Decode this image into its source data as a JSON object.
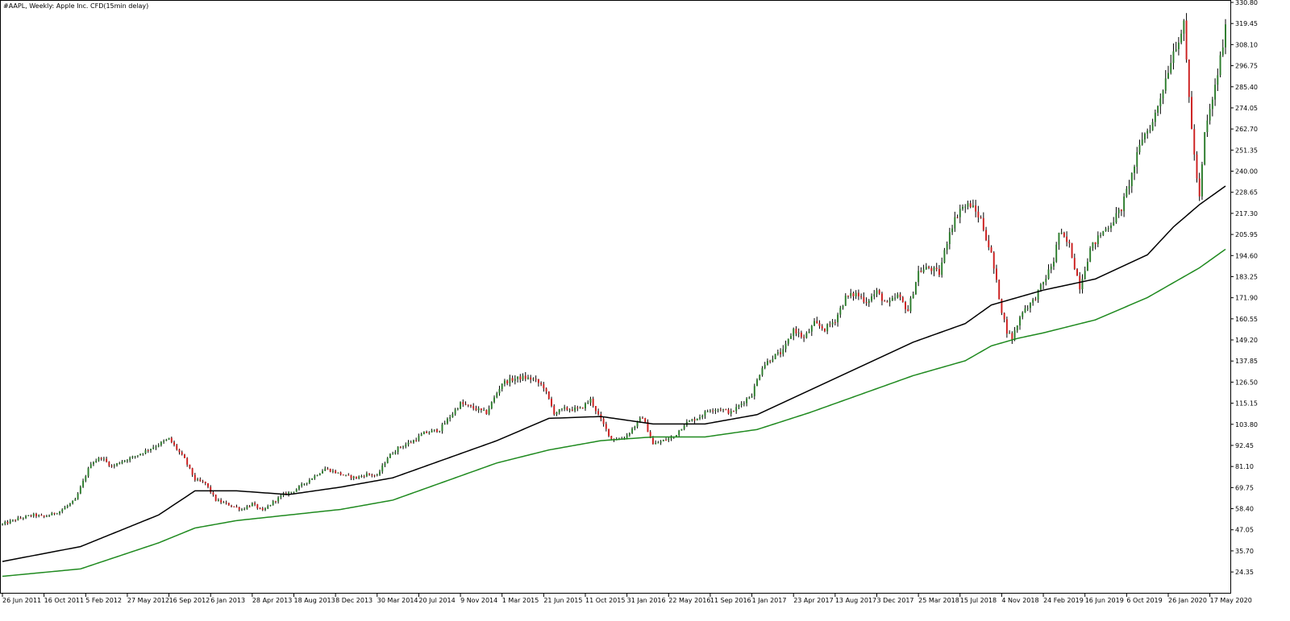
{
  "chart_data": {
    "type": "candlestick",
    "title": "#AAPL, Weekly:  Apple Inc. CFD(15min delay)",
    "colors": {
      "background": "#ffffff",
      "frame": "#000000",
      "bull_candle": "#2d7d2d",
      "bear_candle": "#cc1f1f",
      "wick": "#000000",
      "ma_fast": "#000000",
      "ma_slow": "#1f8a1f"
    },
    "y_axis": {
      "ylim": [
        14.0,
        330.8
      ],
      "tick_values": [
        24.35,
        35.7,
        47.05,
        58.4,
        69.75,
        81.1,
        92.45,
        103.8,
        115.15,
        126.5,
        137.85,
        149.2,
        160.55,
        171.9,
        183.25,
        194.6,
        205.95,
        217.3,
        228.65,
        240.0,
        251.35,
        262.7,
        274.05,
        285.4,
        296.75,
        308.1,
        319.45,
        330.8
      ],
      "tick_labels": [
        "24.35",
        "35.70",
        "47.05",
        "58.40",
        "69.75",
        "81.10",
        "92.45",
        "103.80",
        "115.15",
        "126.50",
        "137.85",
        "149.20",
        "160.55",
        "171.90",
        "183.25",
        "194.60",
        "205.95",
        "217.30",
        "228.65",
        "240.00",
        "251.35",
        "262.70",
        "274.05",
        "285.40",
        "296.75",
        "308.10",
        "319.45",
        "330.80"
      ]
    },
    "x_axis": {
      "tick_labels": [
        "26 Jun 2011",
        "16 Oct 2011",
        "5 Feb 2012",
        "27 May 2012",
        "16 Sep 2012",
        "6 Jan 2013",
        "28 Apr 2013",
        "18 Aug 2013",
        "8 Dec 2013",
        "30 Mar 2014",
        "20 Jul 2014",
        "9 Nov 2014",
        "1 Mar 2015",
        "21 Jun 2015",
        "11 Oct 2015",
        "31 Jan 2016",
        "22 May 2016",
        "11 Sep 2016",
        "1 Jan 2017",
        "23 Apr 2017",
        "13 Aug 2017",
        "3 Dec 2017",
        "25 Mar 2018",
        "15 Jul 2018",
        "4 Nov 2018",
        "24 Feb 2019",
        "16 Jun 2019",
        "6 Oct 2019",
        "26 Jan 2020",
        "17 May 2020"
      ],
      "tick_week_index": [
        0,
        16,
        32,
        48,
        64,
        80,
        96,
        112,
        128,
        144,
        160,
        176,
        192,
        208,
        224,
        240,
        256,
        272,
        288,
        304,
        320,
        336,
        352,
        368,
        384,
        400,
        416,
        432,
        448,
        464
      ],
      "total_weeks": 471
    },
    "price_keyframes": [
      [
        0,
        50.0
      ],
      [
        6,
        53.0
      ],
      [
        12,
        55.0
      ],
      [
        16,
        54.0
      ],
      [
        22,
        57.0
      ],
      [
        28,
        63.0
      ],
      [
        34,
        83.0
      ],
      [
        38,
        86.0
      ],
      [
        42,
        81.0
      ],
      [
        46,
        84.0
      ],
      [
        50,
        86.0
      ],
      [
        60,
        93.0
      ],
      [
        64,
        96.0
      ],
      [
        70,
        85.0
      ],
      [
        74,
        74.0
      ],
      [
        78,
        72.0
      ],
      [
        82,
        63.0
      ],
      [
        86,
        61.0
      ],
      [
        92,
        58.0
      ],
      [
        96,
        61.0
      ],
      [
        100,
        57.0
      ],
      [
        104,
        62.0
      ],
      [
        108,
        66.0
      ],
      [
        112,
        68.0
      ],
      [
        118,
        74.0
      ],
      [
        124,
        80.0
      ],
      [
        128,
        78.0
      ],
      [
        132,
        76.0
      ],
      [
        136,
        75.0
      ],
      [
        140,
        77.0
      ],
      [
        144,
        76.0
      ],
      [
        148,
        86.0
      ],
      [
        152,
        91.0
      ],
      [
        158,
        95.0
      ],
      [
        162,
        99.0
      ],
      [
        168,
        101.0
      ],
      [
        172,
        108.0
      ],
      [
        176,
        115.0
      ],
      [
        180,
        113.0
      ],
      [
        186,
        110.0
      ],
      [
        192,
        126.0
      ],
      [
        196,
        128.0
      ],
      [
        200,
        129.0
      ],
      [
        204,
        128.0
      ],
      [
        208,
        124.0
      ],
      [
        212,
        110.0
      ],
      [
        216,
        112.0
      ],
      [
        222,
        112.0
      ],
      [
        226,
        117.0
      ],
      [
        230,
        106.0
      ],
      [
        234,
        96.0
      ],
      [
        238,
        96.0
      ],
      [
        240,
        98.0
      ],
      [
        246,
        108.0
      ],
      [
        250,
        93.0
      ],
      [
        254,
        95.0
      ],
      [
        258,
        97.0
      ],
      [
        262,
        104.0
      ],
      [
        268,
        108.0
      ],
      [
        272,
        112.0
      ],
      [
        276,
        112.0
      ],
      [
        280,
        110.0
      ],
      [
        284,
        115.0
      ],
      [
        288,
        120.0
      ],
      [
        292,
        135.0
      ],
      [
        296,
        140.0
      ],
      [
        300,
        143.0
      ],
      [
        304,
        155.0
      ],
      [
        308,
        150.0
      ],
      [
        312,
        158.0
      ],
      [
        316,
        155.0
      ],
      [
        320,
        160.0
      ],
      [
        324,
        172.0
      ],
      [
        328,
        174.0
      ],
      [
        332,
        170.0
      ],
      [
        336,
        175.0
      ],
      [
        340,
        168.0
      ],
      [
        344,
        173.0
      ],
      [
        348,
        165.0
      ],
      [
        352,
        186.0
      ],
      [
        356,
        188.0
      ],
      [
        360,
        185.0
      ],
      [
        364,
        208.0
      ],
      [
        368,
        220.0
      ],
      [
        372,
        222.0
      ],
      [
        376,
        214.0
      ],
      [
        380,
        195.0
      ],
      [
        384,
        165.0
      ],
      [
        386,
        154.0
      ],
      [
        388,
        150.0
      ],
      [
        392,
        165.0
      ],
      [
        396,
        170.0
      ],
      [
        400,
        180.0
      ],
      [
        404,
        192.0
      ],
      [
        406,
        207.0
      ],
      [
        410,
        200.0
      ],
      [
        414,
        178.0
      ],
      [
        418,
        198.0
      ],
      [
        422,
        206.0
      ],
      [
        426,
        212.0
      ],
      [
        430,
        220.0
      ],
      [
        434,
        238.0
      ],
      [
        438,
        258.0
      ],
      [
        442,
        266.0
      ],
      [
        446,
        285.0
      ],
      [
        450,
        305.0
      ],
      [
        454,
        318.0
      ],
      [
        456,
        280.0
      ],
      [
        458,
        248.0
      ],
      [
        460,
        225.0
      ],
      [
        462,
        260.0
      ],
      [
        466,
        285.0
      ],
      [
        470,
        316.0
      ]
    ],
    "series": [
      {
        "name": "",
        "color": "#000000",
        "points": [
          [
            0,
            30.0
          ],
          [
            30,
            38.0
          ],
          [
            60,
            55.0
          ],
          [
            74,
            68.0
          ],
          [
            90,
            68.0
          ],
          [
            110,
            66.0
          ],
          [
            130,
            70.0
          ],
          [
            150,
            75.0
          ],
          [
            170,
            85.0
          ],
          [
            190,
            95.0
          ],
          [
            210,
            107.0
          ],
          [
            230,
            108.0
          ],
          [
            250,
            104.0
          ],
          [
            270,
            104.0
          ],
          [
            290,
            109.0
          ],
          [
            310,
            122.0
          ],
          [
            330,
            135.0
          ],
          [
            350,
            148.0
          ],
          [
            370,
            158.0
          ],
          [
            380,
            168.0
          ],
          [
            390,
            172.0
          ],
          [
            400,
            176.0
          ],
          [
            420,
            182.0
          ],
          [
            440,
            195.0
          ],
          [
            450,
            210.0
          ],
          [
            460,
            222.0
          ],
          [
            470,
            232.0
          ]
        ]
      },
      {
        "name": "",
        "color": "#1f8a1f",
        "points": [
          [
            0,
            22.0
          ],
          [
            30,
            26.0
          ],
          [
            60,
            40.0
          ],
          [
            74,
            48.0
          ],
          [
            90,
            52.0
          ],
          [
            110,
            55.0
          ],
          [
            130,
            58.0
          ],
          [
            150,
            63.0
          ],
          [
            170,
            73.0
          ],
          [
            190,
            83.0
          ],
          [
            210,
            90.0
          ],
          [
            230,
            95.0
          ],
          [
            250,
            97.0
          ],
          [
            270,
            97.0
          ],
          [
            290,
            101.0
          ],
          [
            310,
            110.0
          ],
          [
            330,
            120.0
          ],
          [
            350,
            130.0
          ],
          [
            370,
            138.0
          ],
          [
            380,
            146.0
          ],
          [
            390,
            150.0
          ],
          [
            400,
            153.0
          ],
          [
            420,
            160.0
          ],
          [
            440,
            172.0
          ],
          [
            450,
            180.0
          ],
          [
            460,
            188.0
          ],
          [
            470,
            198.0
          ]
        ]
      }
    ]
  }
}
